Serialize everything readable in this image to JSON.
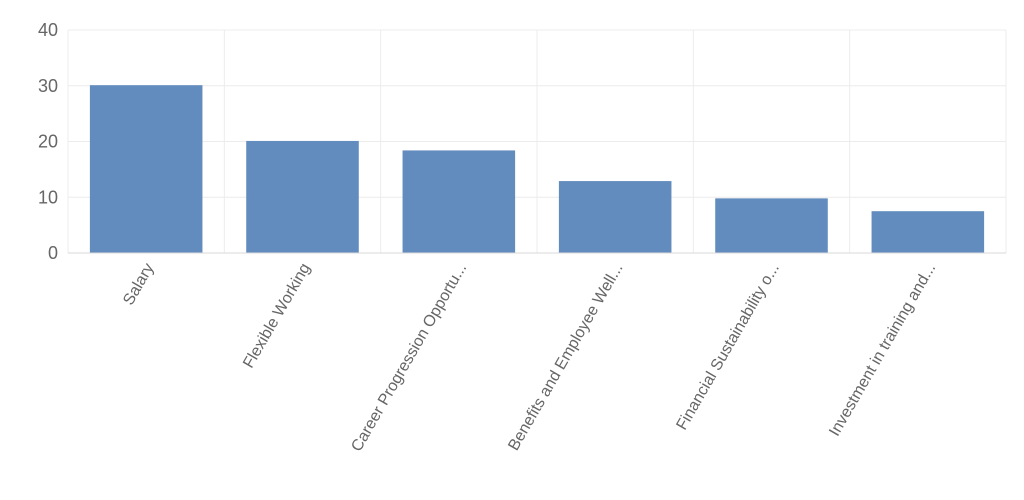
{
  "chart_data": {
    "type": "bar",
    "categories": [
      "Salary",
      "Flexible Working",
      "Career Progression Opportu...",
      "Benefits and Employee Well...",
      "Financial Sustainability o...",
      "Investment in training and..."
    ],
    "values": [
      30.1,
      20.1,
      18.4,
      12.9,
      9.8,
      7.5
    ],
    "title": "",
    "xlabel": "",
    "ylabel": "",
    "ylim": [
      0,
      40
    ],
    "yticks": [
      0,
      10,
      20,
      30,
      40
    ],
    "grid": true,
    "bar_color": "#628cbd"
  }
}
